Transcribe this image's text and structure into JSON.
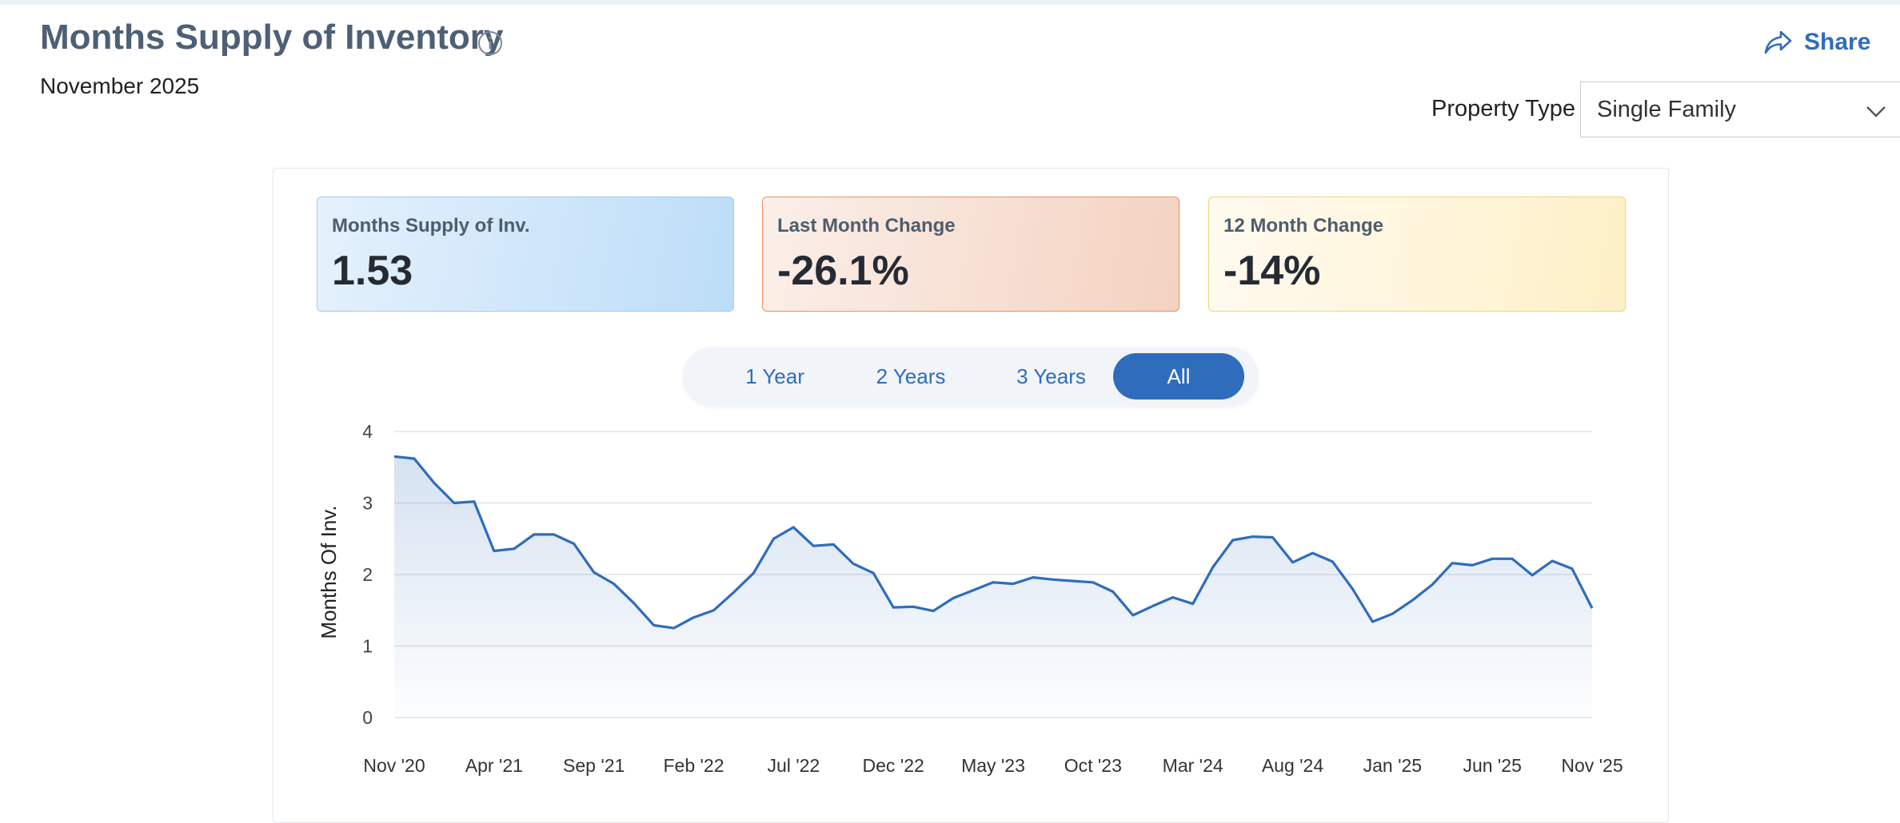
{
  "header": {
    "title": "Months Supply of Inventory",
    "subtitle": "November 2025",
    "share_label": "Share"
  },
  "filters": {
    "property_type_label": "Property Type",
    "property_type_value": "Single Family"
  },
  "stats": [
    {
      "label": "Months Supply of Inv.",
      "value": "1.53"
    },
    {
      "label": "Last Month Change",
      "value": "-26.1%"
    },
    {
      "label": "12 Month Change",
      "value": "-14%"
    }
  ],
  "ranges": [
    {
      "label": "1 Year"
    },
    {
      "label": "2 Years"
    },
    {
      "label": "3 Years"
    },
    {
      "label": "All"
    }
  ],
  "active_range_index": 3,
  "colors": {
    "accent": "#2f6cbc",
    "title": "#4e6076",
    "line": "#2f6cbc"
  },
  "icons": {
    "info": "info-circle-icon",
    "share": "share-arrow-icon",
    "dropdown": "chevron-down-icon"
  },
  "chart_data": {
    "type": "area",
    "ylabel": "Months Of Inv.",
    "ylim": [
      0,
      4
    ],
    "yticks": [
      0,
      1,
      2,
      3,
      4
    ],
    "grid": true,
    "x_tick_labels": [
      "Nov '20",
      "Apr '21",
      "Sep '21",
      "Feb '22",
      "Jul '22",
      "Dec '22",
      "May '23",
      "Oct '23",
      "Mar '24",
      "Aug '24",
      "Jan '25",
      "Jun '25",
      "Nov '25"
    ],
    "x_start": "2020-11",
    "x_end": "2025-11",
    "values": [
      3.65,
      3.62,
      3.28,
      3.0,
      3.02,
      2.33,
      2.36,
      2.56,
      2.56,
      2.43,
      2.03,
      1.87,
      1.6,
      1.29,
      1.25,
      1.4,
      1.5,
      1.75,
      2.02,
      2.5,
      2.66,
      2.4,
      2.42,
      2.15,
      2.02,
      1.54,
      1.55,
      1.49,
      1.67,
      1.78,
      1.89,
      1.87,
      1.96,
      1.93,
      1.91,
      1.89,
      1.76,
      1.43,
      1.56,
      1.68,
      1.59,
      2.1,
      2.48,
      2.53,
      2.52,
      2.17,
      2.3,
      2.18,
      1.8,
      1.34,
      1.45,
      1.64,
      1.86,
      2.16,
      2.13,
      2.22,
      2.22,
      1.99,
      2.19,
      2.08,
      1.53
    ]
  }
}
